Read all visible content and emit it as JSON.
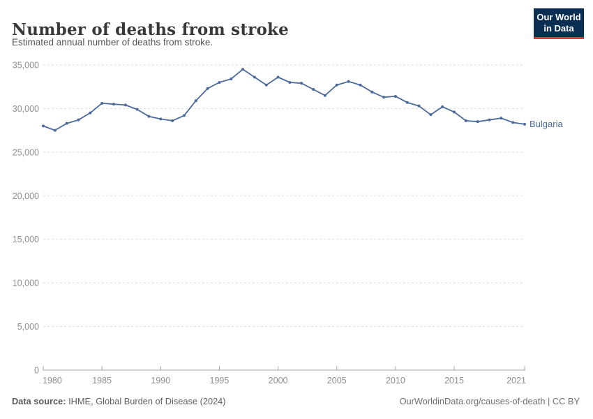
{
  "header": {
    "title": "Number of deaths from stroke",
    "subtitle": "Estimated annual number of deaths from stroke."
  },
  "logo": {
    "line1": "Our World",
    "line2": "in Data",
    "bg_color": "#0a2d52",
    "accent_color": "#dc3e32"
  },
  "chart_data": {
    "type": "line",
    "title": "Number of deaths from stroke",
    "entity": "Bulgaria",
    "xlabel": "",
    "ylabel": "",
    "xlim": [
      1980,
      2021
    ],
    "ylim": [
      0,
      35000
    ],
    "grid": "horizontal-dashed",
    "legend_position": "end-of-line-label",
    "x_ticks": [
      1980,
      1985,
      1990,
      1995,
      2000,
      2005,
      2010,
      2015,
      2021
    ],
    "y_ticks": [
      0,
      5000,
      10000,
      15000,
      20000,
      25000,
      30000,
      35000
    ],
    "x": [
      1980,
      1981,
      1982,
      1983,
      1984,
      1985,
      1986,
      1987,
      1988,
      1989,
      1990,
      1991,
      1992,
      1993,
      1994,
      1995,
      1996,
      1997,
      1998,
      1999,
      2000,
      2001,
      2002,
      2003,
      2004,
      2005,
      2006,
      2007,
      2008,
      2009,
      2010,
      2011,
      2012,
      2013,
      2014,
      2015,
      2016,
      2017,
      2018,
      2019,
      2020,
      2021
    ],
    "series": [
      {
        "name": "Bulgaria",
        "color": "#4c6a9c",
        "values": [
          28000,
          27500,
          28300,
          28700,
          29500,
          30600,
          30500,
          30400,
          29900,
          29100,
          28800,
          28600,
          29200,
          30900,
          32300,
          33000,
          33400,
          34500,
          33600,
          32700,
          33600,
          33000,
          32900,
          32200,
          31500,
          32700,
          33100,
          32700,
          31900,
          31300,
          31400,
          30700,
          30300,
          29300,
          30200,
          29600,
          28600,
          28500,
          28700,
          28900,
          28400,
          28200
        ]
      }
    ],
    "colors": {
      "line": "#4c6a9c",
      "grid": "#dcdcdc",
      "axis": "#a5a5a5",
      "tick_text": "#8e8e8e"
    }
  },
  "footer": {
    "data_source_label": "Data source:",
    "data_source_value": " IHME, Global Burden of Disease (2024)",
    "credit": "OurWorldinData.org/causes-of-death | CC BY"
  }
}
